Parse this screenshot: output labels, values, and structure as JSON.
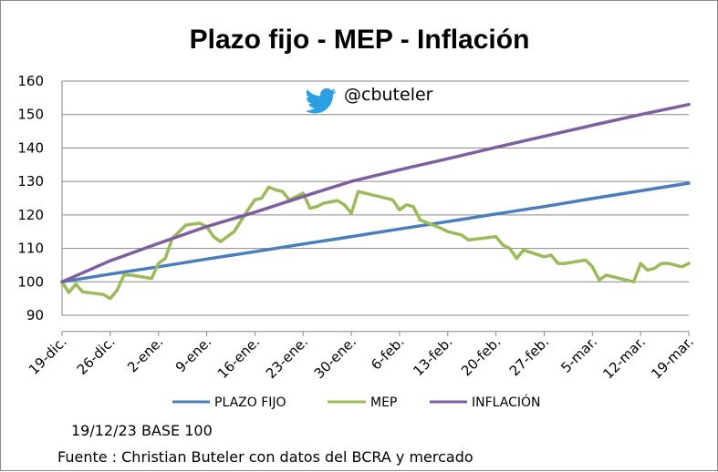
{
  "chart_data": {
    "type": "line",
    "title": "Plazo fijo - MEP - Inflación",
    "handle": "@cbuteler",
    "handle_icon": "twitter-bird-icon",
    "note_base": "19/12/23 BASE 100",
    "note_source": "Fuente : Christian Buteler con datos del BCRA y mercado",
    "xlabel": "",
    "ylabel": "",
    "ylim": [
      85,
      160
    ],
    "yticks": [
      90,
      100,
      110,
      120,
      130,
      140,
      150,
      160
    ],
    "xlim": [
      0,
      91
    ],
    "xticks": [
      {
        "x": 0,
        "label": "19-dic."
      },
      {
        "x": 7,
        "label": "26-dic."
      },
      {
        "x": 14,
        "label": "2-ene."
      },
      {
        "x": 21,
        "label": "9-ene."
      },
      {
        "x": 28,
        "label": "16-ene."
      },
      {
        "x": 35,
        "label": "23-ene."
      },
      {
        "x": 42,
        "label": "30-ene."
      },
      {
        "x": 49,
        "label": "6-feb."
      },
      {
        "x": 56,
        "label": "13-feb."
      },
      {
        "x": 63,
        "label": "20-feb."
      },
      {
        "x": 70,
        "label": "27-feb."
      },
      {
        "x": 77,
        "label": "5-mar."
      },
      {
        "x": 84,
        "label": "12-mar."
      },
      {
        "x": 91,
        "label": "19-mar."
      }
    ],
    "grid": "horizontal",
    "legend_position": "bottom",
    "series": [
      {
        "name": "PLAZO FIJO",
        "color": "#4a7ebb",
        "x": [
          0,
          7,
          14,
          21,
          28,
          35,
          42,
          49,
          56,
          63,
          70,
          77,
          84,
          91
        ],
        "y": [
          100,
          102.3,
          104.5,
          106.8,
          109,
          111.3,
          113.5,
          115.8,
          118,
          120.3,
          122.5,
          124.9,
          127.2,
          129.5
        ]
      },
      {
        "name": "MEP",
        "color": "#9bbb59",
        "x": [
          0,
          1,
          2,
          3,
          6,
          7,
          8,
          9,
          10,
          13,
          14,
          15,
          16,
          17,
          18,
          20,
          21,
          22,
          23,
          24,
          25,
          27,
          28,
          29,
          30,
          31,
          32,
          33,
          34,
          35,
          36,
          37,
          38,
          40,
          41,
          42,
          43,
          44,
          45,
          48,
          49,
          50,
          51,
          52,
          55,
          56,
          58,
          59,
          63,
          64,
          65,
          66,
          67,
          70,
          71,
          72,
          73,
          76,
          77,
          78,
          79,
          83,
          84,
          85,
          86,
          87,
          88,
          90,
          91
        ],
        "y": [
          100,
          96.8,
          99.3,
          97,
          96.2,
          95,
          97.5,
          102,
          102,
          101,
          105.5,
          107,
          113,
          115,
          117,
          117.5,
          116.5,
          113.5,
          112,
          113.5,
          115,
          121.5,
          124.5,
          125,
          128.3,
          127.5,
          127,
          124.5,
          125.5,
          126.5,
          122,
          122.5,
          123.5,
          124.3,
          123,
          120.5,
          127,
          126.5,
          126,
          124.5,
          121.5,
          123,
          122.5,
          118.5,
          116,
          115,
          114,
          112.5,
          113.5,
          111,
          110,
          107,
          109.5,
          107.5,
          108,
          105.5,
          105.5,
          106.5,
          104.5,
          100.5,
          102,
          100,
          105.5,
          103.5,
          104,
          105.5,
          105.5,
          104.5,
          105.5
        ]
      },
      {
        "name": "INFLACIÓN",
        "color": "#7e5ea0",
        "x": [
          0,
          7,
          14,
          21,
          28,
          35,
          42,
          49,
          56,
          63,
          70,
          77,
          84,
          91
        ],
        "y": [
          100,
          106.3,
          111.5,
          116.5,
          120.8,
          125.5,
          130,
          133.5,
          136.8,
          140.2,
          143.5,
          146.8,
          150,
          153
        ]
      }
    ]
  }
}
